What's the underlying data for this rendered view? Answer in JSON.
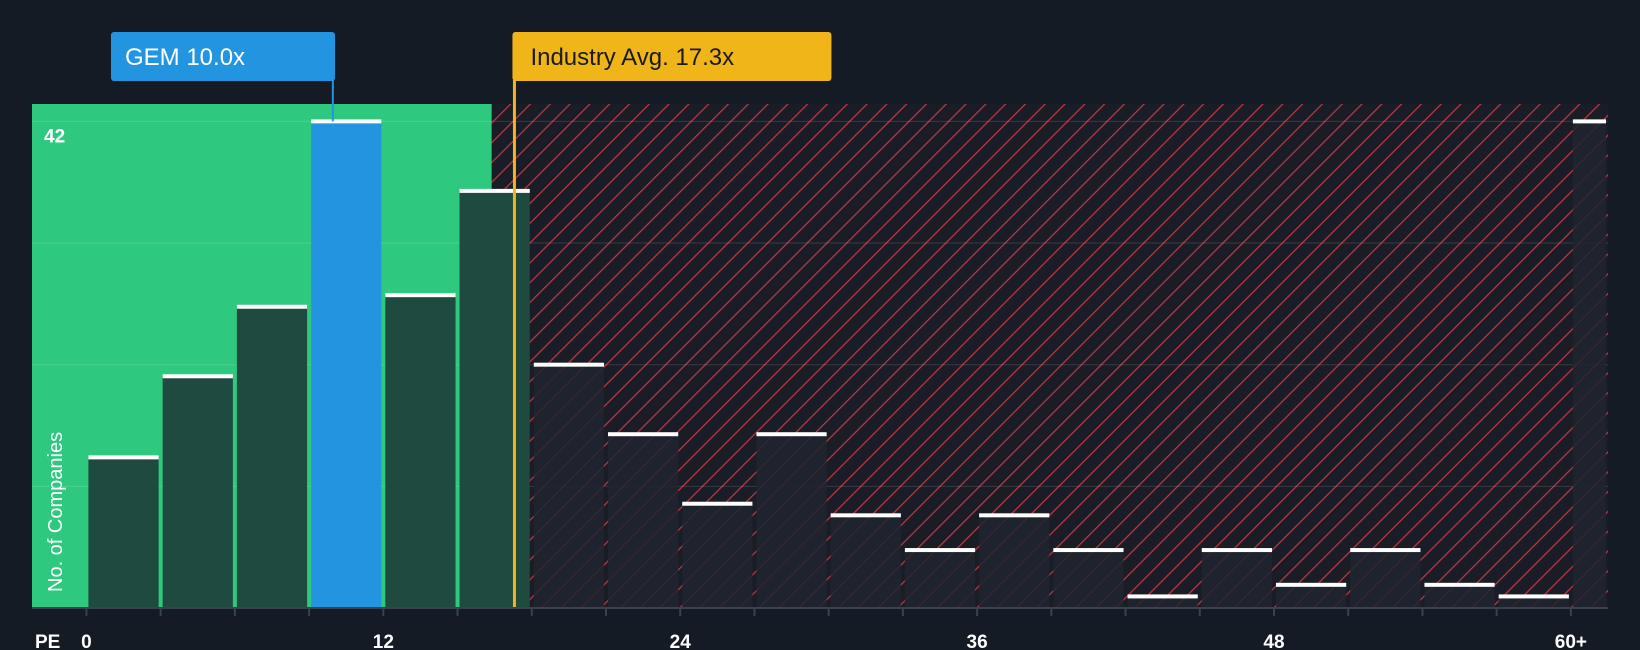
{
  "chart_data": {
    "type": "bar",
    "title": "",
    "xlabel": "PE",
    "ylabel": "No. of Companies",
    "y_tick_labels": [
      "42"
    ],
    "x_tick_labels": [
      "0",
      "12",
      "24",
      "36",
      "48",
      "60+"
    ],
    "x_tick_values": [
      0,
      12,
      24,
      36,
      48,
      60
    ],
    "xlim": [
      -2.2,
      61.5
    ],
    "ylim": [
      0,
      43.5
    ],
    "grid": true,
    "bin_edges": [
      0,
      3,
      6,
      9,
      12,
      15,
      18,
      21,
      24,
      27,
      30,
      33,
      36,
      39,
      42,
      45,
      48,
      51,
      54,
      57,
      60,
      61.5
    ],
    "values": [
      13,
      20,
      26,
      42,
      27,
      36,
      21,
      15,
      9,
      15,
      8,
      5,
      8,
      5,
      1,
      5,
      2,
      5,
      2,
      1,
      42
    ],
    "highlight_bin_index": 3,
    "company": {
      "label": "GEM 10.0x",
      "value": 10.0,
      "color": "#2394e0"
    },
    "industry_avg": {
      "label": "Industry Avg. 17.3x",
      "value": 17.3,
      "color": "#f0b619"
    },
    "colors": {
      "background": "#151b24",
      "below_avg_zone": "#2ec97e",
      "above_avg_zone": "#e04550",
      "bar": "#1e4a40",
      "bar_in_red": "#1e2430",
      "highlight_bar": "#2394e0",
      "bar_top": "#ffffff"
    }
  }
}
